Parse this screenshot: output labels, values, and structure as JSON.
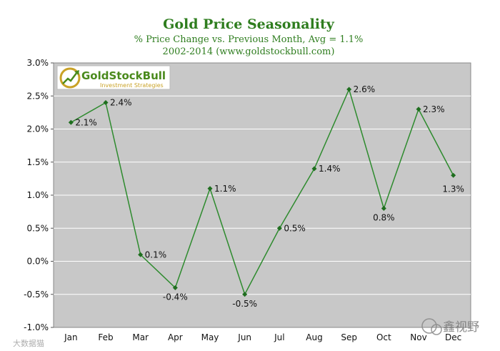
{
  "colors": {
    "plot_bg": "#c8c8c8",
    "grid": "#ffffff",
    "line": "#2e8b2e",
    "title": "#2e7d1e",
    "text": "#111111",
    "logo_green": "#4a8a1c",
    "logo_gold": "#c9a227"
  },
  "logo": {
    "brand": "GoldStockBull",
    "tagline": "Investment Strategies",
    "icon": "chart-arrow-coin-icon"
  },
  "watermarks": {
    "left": "大数据猫",
    "right": "鑫视野"
  },
  "chart_data": {
    "type": "line",
    "title": "Gold Price Seasonality",
    "subtitle": "% Price Change vs. Previous Month, Avg = 1.1%",
    "subtitle2": "2002-2014 (www.goldstockbull.com)",
    "xlabel": "",
    "ylabel": "",
    "categories": [
      "Jan",
      "Feb",
      "Mar",
      "Apr",
      "May",
      "Jun",
      "Jul",
      "Aug",
      "Sep",
      "Oct",
      "Nov",
      "Dec"
    ],
    "values": [
      2.1,
      2.4,
      0.1,
      -0.4,
      1.1,
      -0.5,
      0.5,
      1.4,
      2.6,
      0.8,
      2.3,
      1.3
    ],
    "value_labels": [
      "2.1%",
      "2.4%",
      "0.1%",
      "-0.4%",
      "1.1%",
      "-0.5%",
      "0.5%",
      "1.4%",
      "2.6%",
      "0.8%",
      "2.3%",
      "1.3%"
    ],
    "ylim": [
      -1.0,
      3.0
    ],
    "yticks": [
      -1.0,
      -0.5,
      0.0,
      0.5,
      1.0,
      1.5,
      2.0,
      2.5,
      3.0
    ],
    "ytick_labels": [
      "-1.0%",
      "-0.5%",
      "0.0%",
      "0.5%",
      "1.0%",
      "1.5%",
      "2.0%",
      "2.5%",
      "3.0%"
    ],
    "grid": true,
    "legend": "none"
  }
}
